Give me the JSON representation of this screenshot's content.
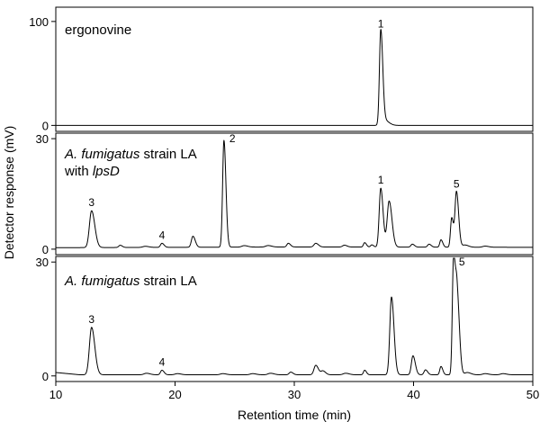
{
  "chart_data": {
    "type": "line",
    "xlabel": "Retention time (min)",
    "ylabel": "Detector response (mV)",
    "xlim": [
      10,
      50
    ],
    "x_ticks": [
      10,
      20,
      30,
      40,
      50
    ],
    "panels": [
      {
        "id": "ergonovine",
        "title_parts": [
          {
            "text": "ergonovine",
            "italic": false
          }
        ],
        "title_line2_parts": [],
        "ylim": [
          -4,
          112
        ],
        "y_ticks": [
          0,
          100
        ],
        "baseline": 0,
        "baseline_drift": [],
        "peaks": [
          {
            "x": 37.25,
            "y": 90,
            "w": 0.11,
            "label": "1"
          },
          {
            "x": 37.55,
            "y": 5,
            "w": 0.25
          }
        ]
      },
      {
        "id": "lpsD",
        "title_parts": [
          {
            "text": "A. fumigatus",
            "italic": true
          },
          {
            "text": " strain LA",
            "italic": false
          }
        ],
        "title_line2_parts": [
          {
            "text": "with ",
            "italic": false
          },
          {
            "text": "lpsD",
            "italic": true
          }
        ],
        "ylim": [
          -1,
          31
        ],
        "y_ticks": [
          0,
          30
        ],
        "baseline": 0.5,
        "baseline_drift": [
          {
            "x": 10,
            "y": 0.4
          },
          {
            "x": 30,
            "y": 0.6
          },
          {
            "x": 50,
            "y": 0.5
          }
        ],
        "peaks": [
          {
            "x": 13.0,
            "y": 10.0,
            "w": 0.18,
            "label": "3"
          },
          {
            "x": 15.4,
            "y": 0.6,
            "w": 0.12
          },
          {
            "x": 17.5,
            "y": 0.3,
            "w": 0.2
          },
          {
            "x": 18.9,
            "y": 1.1,
            "w": 0.12,
            "label": "4"
          },
          {
            "x": 21.5,
            "y": 3.0,
            "w": 0.13
          },
          {
            "x": 24.1,
            "y": 29.0,
            "w": 0.11,
            "label": "2"
          },
          {
            "x": 25.8,
            "y": 0.4,
            "w": 0.2
          },
          {
            "x": 27.8,
            "y": 0.4,
            "w": 0.2
          },
          {
            "x": 29.5,
            "y": 1.0,
            "w": 0.12
          },
          {
            "x": 31.8,
            "y": 1.0,
            "w": 0.15
          },
          {
            "x": 34.2,
            "y": 0.5,
            "w": 0.15
          },
          {
            "x": 35.9,
            "y": 1.2,
            "w": 0.1
          },
          {
            "x": 36.5,
            "y": 0.6,
            "w": 0.1
          },
          {
            "x": 37.25,
            "y": 16.0,
            "w": 0.13,
            "label": "1"
          },
          {
            "x": 37.95,
            "y": 12.5,
            "w": 0.16
          },
          {
            "x": 39.9,
            "y": 0.8,
            "w": 0.12
          },
          {
            "x": 41.3,
            "y": 0.8,
            "w": 0.12
          },
          {
            "x": 42.3,
            "y": 2.0,
            "w": 0.1
          },
          {
            "x": 43.2,
            "y": 8.0,
            "w": 0.1
          },
          {
            "x": 43.6,
            "y": 15.0,
            "w": 0.12,
            "label": "5"
          },
          {
            "x": 44.3,
            "y": 0.6,
            "w": 0.2
          },
          {
            "x": 46.0,
            "y": 0.3,
            "w": 0.2
          }
        ]
      },
      {
        "id": "strainLA",
        "title_parts": [
          {
            "text": "A. fumigatus",
            "italic": true
          },
          {
            "text": " strain LA",
            "italic": false
          }
        ],
        "title_line2_parts": [],
        "ylim": [
          -1,
          31
        ],
        "y_ticks": [
          0,
          30
        ],
        "baseline": 0.3,
        "baseline_drift": [
          {
            "x": 10,
            "y": 0.9
          },
          {
            "x": 12,
            "y": 0.3
          },
          {
            "x": 50,
            "y": 0.3
          }
        ],
        "peaks": [
          {
            "x": 13.0,
            "y": 12.5,
            "w": 0.18,
            "label": "3"
          },
          {
            "x": 17.6,
            "y": 0.4,
            "w": 0.2
          },
          {
            "x": 18.9,
            "y": 1.2,
            "w": 0.12,
            "label": "4"
          },
          {
            "x": 20.2,
            "y": 0.3,
            "w": 0.2
          },
          {
            "x": 24.0,
            "y": 0.3,
            "w": 0.2
          },
          {
            "x": 26.5,
            "y": 0.3,
            "w": 0.2
          },
          {
            "x": 28.0,
            "y": 0.4,
            "w": 0.2
          },
          {
            "x": 29.7,
            "y": 0.7,
            "w": 0.13
          },
          {
            "x": 31.8,
            "y": 2.5,
            "w": 0.15
          },
          {
            "x": 32.4,
            "y": 1.0,
            "w": 0.15
          },
          {
            "x": 34.3,
            "y": 0.4,
            "w": 0.2
          },
          {
            "x": 35.9,
            "y": 1.2,
            "w": 0.1
          },
          {
            "x": 38.15,
            "y": 20.5,
            "w": 0.14
          },
          {
            "x": 39.95,
            "y": 5.0,
            "w": 0.13
          },
          {
            "x": 41.0,
            "y": 1.3,
            "w": 0.12
          },
          {
            "x": 42.3,
            "y": 2.2,
            "w": 0.1
          },
          {
            "x": 43.35,
            "y": 30.0,
            "w": 0.1,
            "label": "5"
          },
          {
            "x": 43.65,
            "y": 21.0,
            "w": 0.13
          },
          {
            "x": 44.5,
            "y": 0.6,
            "w": 0.2
          },
          {
            "x": 46.0,
            "y": 0.3,
            "w": 0.2
          },
          {
            "x": 47.5,
            "y": 0.3,
            "w": 0.2
          }
        ]
      }
    ]
  }
}
